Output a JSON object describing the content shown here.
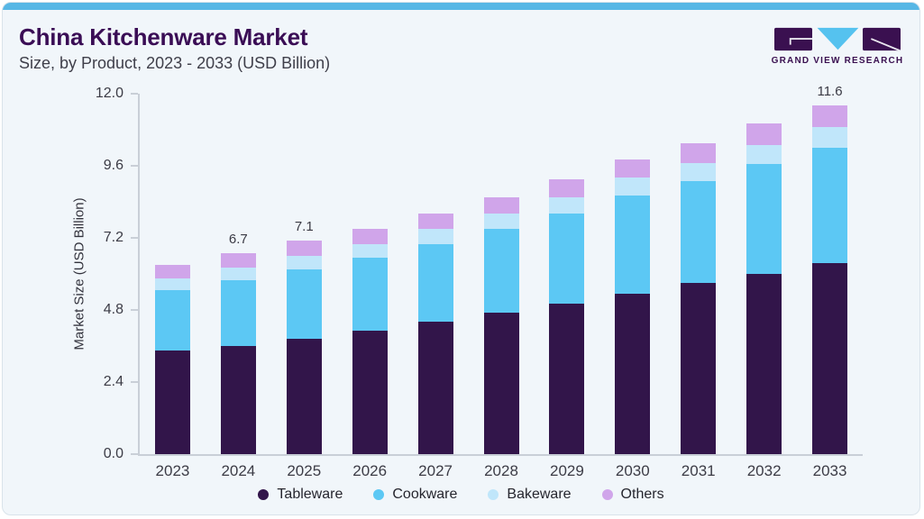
{
  "header": {
    "title": "China Kitchenware Market",
    "subtitle": "Size, by Product, 2023 - 2033 (USD Billion)"
  },
  "logo": {
    "text": "GRAND VIEW RESEARCH",
    "purple": "#3a1050",
    "blue": "#55c2ef"
  },
  "theme": {
    "card_background": "#f1f6fa",
    "top_strip_color": "#57b7e5",
    "title_color": "#3a0d55",
    "axis_color": "#c9cfd7",
    "text_color": "#3c3c46"
  },
  "chart_data": {
    "type": "bar",
    "stacked": true,
    "title": "China Kitchenware Market Size, by Product, 2023 - 2033 (USD Billion)",
    "xlabel": "",
    "ylabel": "Market Size (USD Billion)",
    "ylim": [
      0,
      12
    ],
    "yticks": [
      "12.0",
      "9.6",
      "7.2",
      "4.8",
      "2.4",
      "0.0"
    ],
    "grid": false,
    "legend_position": "bottom",
    "categories": [
      "2023",
      "2024",
      "2025",
      "2026",
      "2027",
      "2028",
      "2029",
      "2030",
      "2031",
      "2032",
      "2033"
    ],
    "series": [
      {
        "name": "Tableware",
        "color": "#32154a",
        "values": [
          3.45,
          3.6,
          3.85,
          4.1,
          4.4,
          4.7,
          5.0,
          5.35,
          5.7,
          6.0,
          6.35
        ]
      },
      {
        "name": "Cookware",
        "color": "#5cc8f4",
        "values": [
          2.0,
          2.2,
          2.3,
          2.45,
          2.6,
          2.8,
          3.0,
          3.25,
          3.4,
          3.65,
          3.85
        ]
      },
      {
        "name": "Bakeware",
        "color": "#c0e6fa",
        "values": [
          0.4,
          0.4,
          0.45,
          0.45,
          0.5,
          0.5,
          0.55,
          0.6,
          0.6,
          0.65,
          0.7
        ]
      },
      {
        "name": "Others",
        "color": "#d0a5ea",
        "values": [
          0.45,
          0.5,
          0.5,
          0.5,
          0.5,
          0.55,
          0.6,
          0.6,
          0.65,
          0.7,
          0.7
        ]
      }
    ],
    "totals": [
      6.3,
      6.7,
      7.1,
      7.5,
      8.0,
      8.55,
      9.15,
      9.8,
      10.35,
      11.0,
      11.6
    ],
    "value_labels": [
      "",
      "6.7",
      "7.1",
      "",
      "",
      "",
      "",
      "",
      "",
      "",
      "11.6"
    ]
  }
}
